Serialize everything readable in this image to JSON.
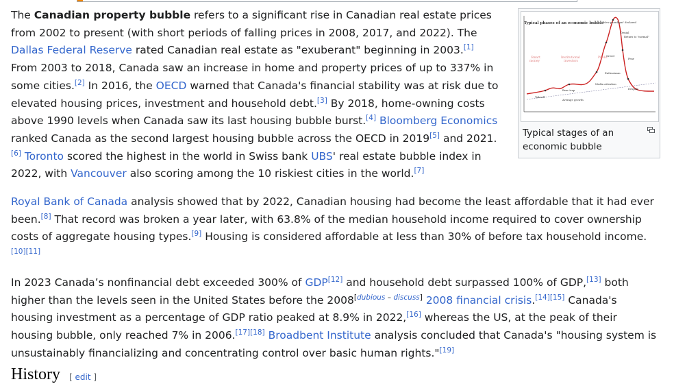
{
  "figure": {
    "caption": "Typical stages of an economic bubble",
    "image_title": "Typical phases of an economic bubble",
    "phases": [
      "Hidden stage",
      "Awareness",
      "Mania",
      "Bubble pop"
    ],
    "labels": {
      "new_paradigm": "\"New paradigm\" declared",
      "denial": "Denial",
      "return": "Return to \"normal\"",
      "bear_trap": "Bear trap",
      "greed": "Greed",
      "fear": "Fear",
      "delusion": "Delusion",
      "capitulation": "Capitulation",
      "despair": "Despair",
      "media": "Media attention",
      "enthusiasm": "Enthusiasm",
      "bear": "Bear trap",
      "takeoff": "Takeoff",
      "first_sell": "First sell off",
      "smart": "Smart money",
      "institutional": "Institutional investors",
      "public": "Public",
      "average": "Average growth",
      "return_growth": "Return to normal growth",
      "sell": "Sell"
    }
  },
  "p1": {
    "s1": "The ",
    "bold": "Canadian property bubble",
    "s2": " refers to a significant rise in Canadian real estate prices from 2002 to present (with short periods of falling prices in 2008, 2017, and 2022). The ",
    "l1": "Dallas Federal Reserve",
    "s3": " rated Canadian real estate as \"exuberant\" beginning in 2003.",
    "r1": "[1]",
    "s4": " From 2003 to 2018, Canada saw an increase in home and property prices of up to 337% in some cities.",
    "r2": "[2]",
    "s5": " In 2016, the ",
    "l2": "OECD",
    "s6": " warned that Canada's financial stability was at risk due to elevated housing prices, investment and household debt.",
    "r3": "[3]",
    "s7": " By 2018, home-owning costs above 1990 levels when Canada saw its last housing bubble burst.",
    "r4": "[4]",
    "s8": " ",
    "l3": "Bloomberg Economics",
    "s9": " ranked Canada as the second largest housing bubble across the OECD in 2019",
    "r5": "[5]",
    "s10": " and 2021.",
    "r6": "[6]",
    "s11": " ",
    "l4": "Toronto",
    "s12": " scored the highest in the world in Swiss bank ",
    "l5": "UBS",
    "s13": "' real estate bubble index in 2022, with ",
    "l6": "Vancouver",
    "s14": " also scoring among the 10 riskiest cities in the world.",
    "r7": "[7]"
  },
  "p2": {
    "l1": "Royal Bank of Canada",
    "s1": " analysis showed that by 2022, Canadian housing had become the least affordable that it had ever been.",
    "r8": "[8]",
    "s2": " That record was broken a year later, with 63.8% of the median household income required to cover ownership costs of aggregate housing types.",
    "r9": "[9]",
    "s3": " Housing is considered affordable at less than 30% of before tax household income.",
    "r10": "[10]",
    "r11": "[11]"
  },
  "p3": {
    "s1": "In 2023 Canada’s nonfinancial debt exceeded 300% of ",
    "l1": "GDP",
    "r12": "[12]",
    "s2": " and household debt surpassed 100% of GDP,",
    "r13": "[13]",
    "s3": " both higher than the levels seen in the United States before the 2008",
    "dubious": "dubious",
    "dash": " – ",
    "discuss": "discuss",
    "s4": " ",
    "l2": "2008 financial crisis",
    "s5": ".",
    "r14": "[14]",
    "r15": "[15]",
    "s6": " Canada's housing investment as a percentage of GDP ratio peaked at 8.9% in 2022,",
    "r16": "[16]",
    "s7": " whereas the US, at the peak of their housing bubble, only reached 7% in 2006.",
    "r17": "[17]",
    "r18": "[18]",
    "s8": " ",
    "l3": "Broadbent Institute",
    "s9": " analysis concluded that Canada's \"housing system is unsustainably financializing and concentrating control over basic human rights.\"",
    "r19": "[19]"
  },
  "section": {
    "title": "History",
    "edit": "edit"
  },
  "colors": {
    "link": "#3366cc",
    "text": "#202122",
    "curve": "#cc2222"
  }
}
